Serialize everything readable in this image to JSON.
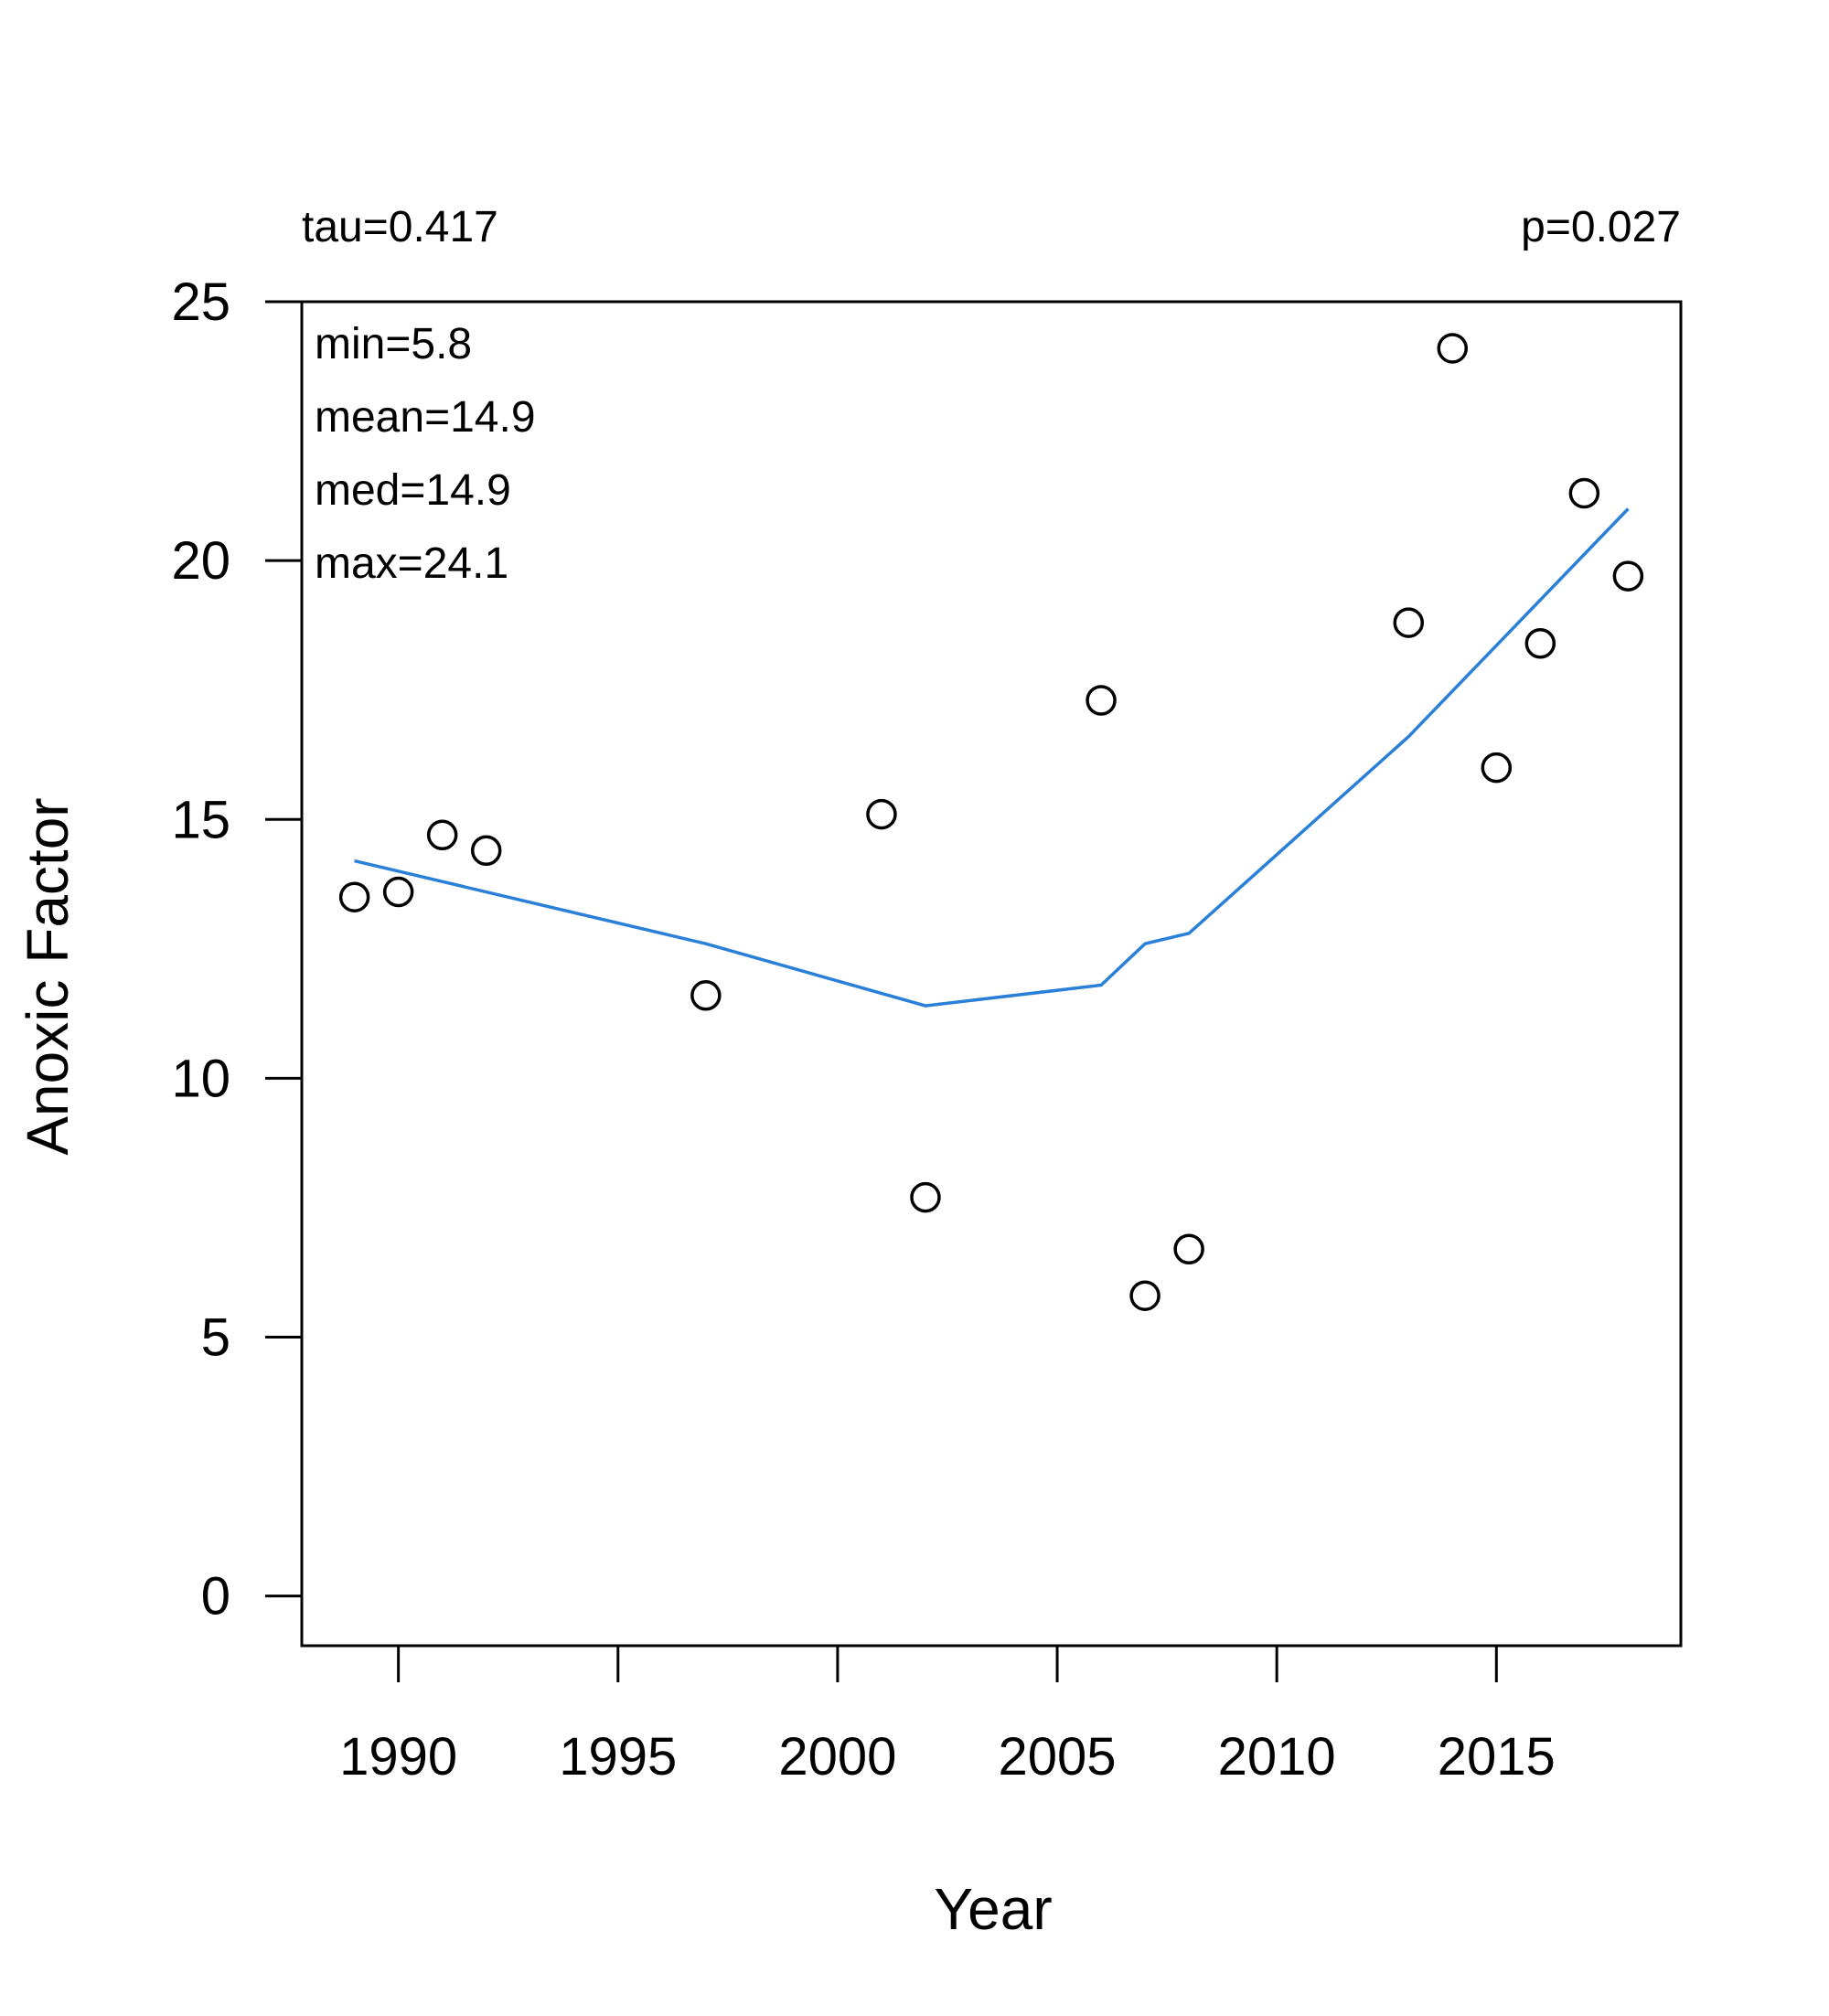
{
  "chart_data": {
    "type": "scatter",
    "title": "",
    "xlabel": "Year",
    "ylabel": "Anoxic Factor",
    "xlim": [
      1987.8,
      2019.2
    ],
    "ylim": [
      -0.96,
      25.0
    ],
    "xticks": [
      1990,
      1995,
      2000,
      2005,
      2010,
      2015
    ],
    "yticks": [
      0,
      5,
      10,
      15,
      20,
      25
    ],
    "grid": false,
    "legend": "none",
    "annotations": {
      "tau": "tau=0.417",
      "p": "p=0.027",
      "min": "min=5.8",
      "mean": "mean=14.9",
      "med": "med=14.9",
      "max": "max=24.1"
    },
    "series": [
      {
        "kind": "points",
        "marker": "open-circle",
        "color": "#000000",
        "points": [
          {
            "x": 1989,
            "y": 13.5
          },
          {
            "x": 1990,
            "y": 13.6
          },
          {
            "x": 1991,
            "y": 14.7
          },
          {
            "x": 1992,
            "y": 14.4
          },
          {
            "x": 1997,
            "y": 11.6
          },
          {
            "x": 2001,
            "y": 15.1
          },
          {
            "x": 2002,
            "y": 7.7
          },
          {
            "x": 2006,
            "y": 17.3
          },
          {
            "x": 2007,
            "y": 5.8
          },
          {
            "x": 2008,
            "y": 6.7
          },
          {
            "x": 2013,
            "y": 18.8
          },
          {
            "x": 2014,
            "y": 24.1
          },
          {
            "x": 2015,
            "y": 16.0
          },
          {
            "x": 2016,
            "y": 18.4
          },
          {
            "x": 2017,
            "y": 21.3
          },
          {
            "x": 2018,
            "y": 19.7
          }
        ]
      },
      {
        "kind": "line",
        "color": "#2a7fd8",
        "points": [
          {
            "x": 1989,
            "y": 14.2
          },
          {
            "x": 1997,
            "y": 12.6
          },
          {
            "x": 2002,
            "y": 11.4
          },
          {
            "x": 2006,
            "y": 11.8
          },
          {
            "x": 2007,
            "y": 12.6
          },
          {
            "x": 2008,
            "y": 12.8
          },
          {
            "x": 2013,
            "y": 16.6
          },
          {
            "x": 2018,
            "y": 21.0
          }
        ]
      }
    ]
  }
}
